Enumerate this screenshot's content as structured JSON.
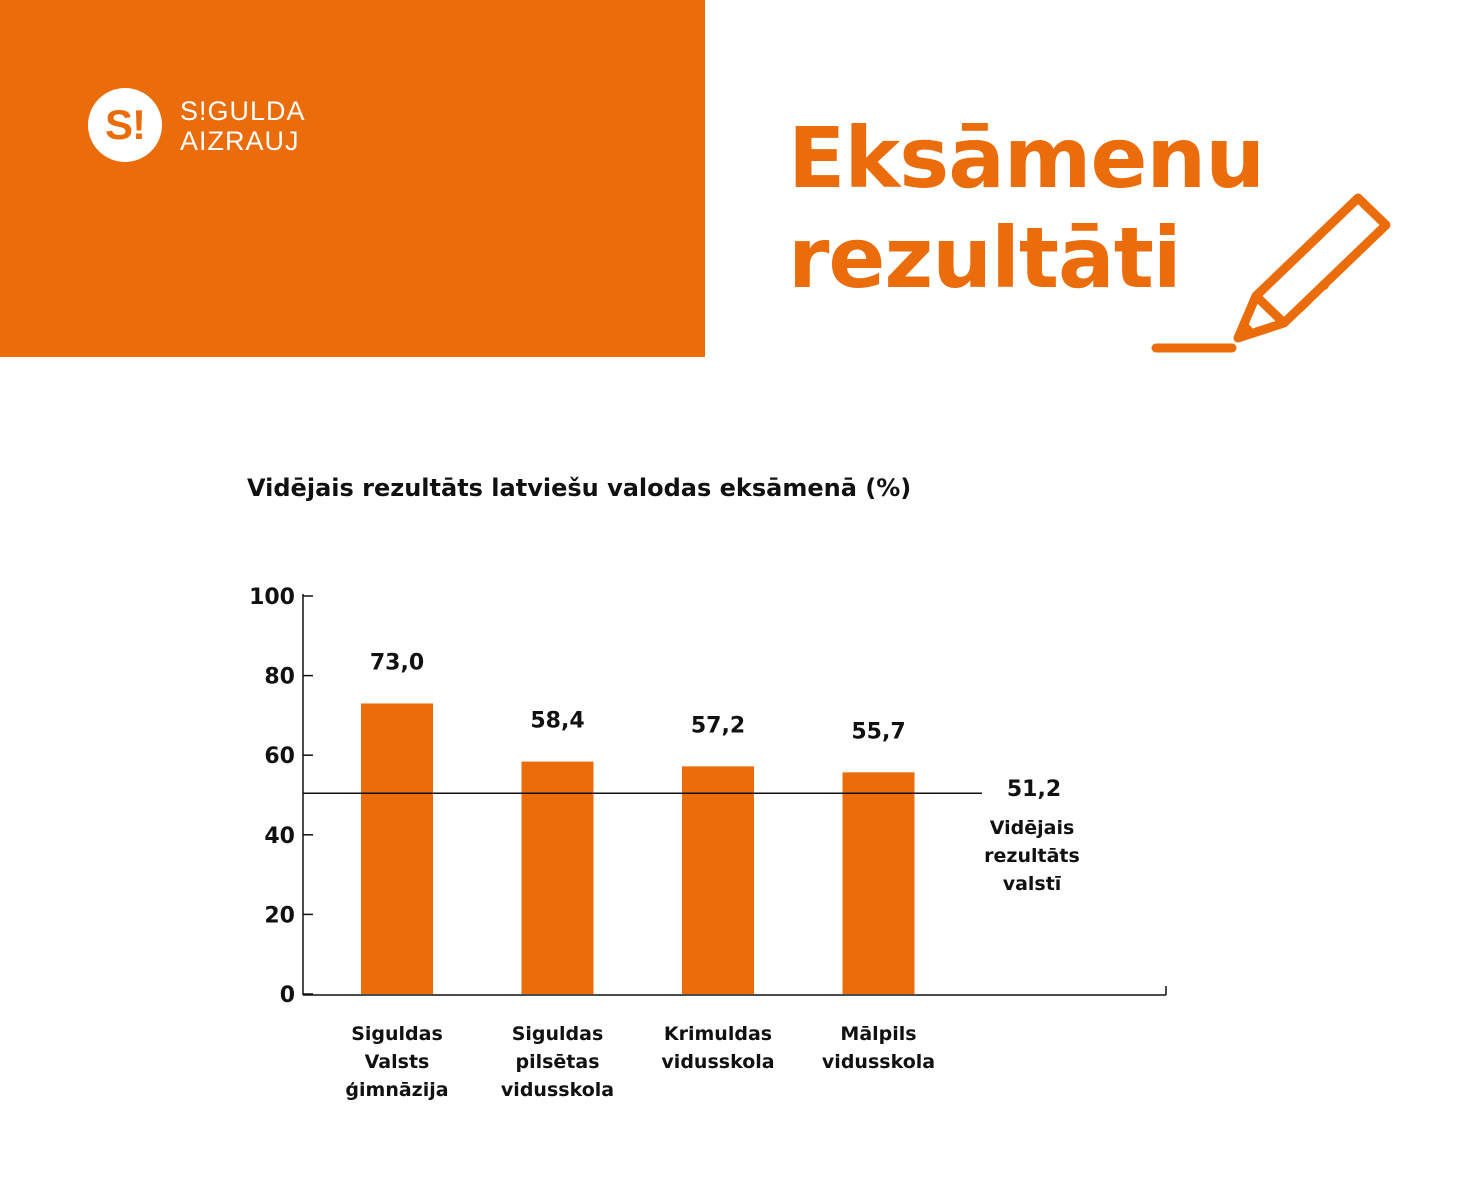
{
  "brand": {
    "logo_mark": "S!",
    "logo_line1": "S!GULDA",
    "logo_line2": "AIZRAUJ",
    "accent_color": "#eb6c0b"
  },
  "headline": {
    "line1": "Eksāmenu",
    "line2": "rezultāti",
    "icon": "pencil-icon"
  },
  "chart_data": {
    "type": "bar",
    "title": "Vidējais rezultāts latviešu valodas eksāmenā (%)",
    "xlabel": "",
    "ylabel": "",
    "ylim": [
      0,
      100
    ],
    "yticks": [
      0,
      20,
      40,
      60,
      80,
      100
    ],
    "grid": false,
    "bar_color": "#eb6c0b",
    "categories": [
      [
        "Siguldas",
        "Valsts",
        "ģimnāzija"
      ],
      [
        "Siguldas",
        "pilsētas",
        "vidusskola"
      ],
      [
        "Krimuldas",
        "vidusskola"
      ],
      [
        "Mālpils",
        "vidusskola"
      ]
    ],
    "values": [
      73.0,
      58.4,
      57.2,
      55.7
    ],
    "value_labels": [
      "73,0",
      "58,4",
      "57,2",
      "55,7"
    ],
    "reference_line": {
      "value": 51.2,
      "value_label": "51,2",
      "label": [
        "Vidējais",
        "rezultāts",
        "valstī"
      ]
    }
  }
}
